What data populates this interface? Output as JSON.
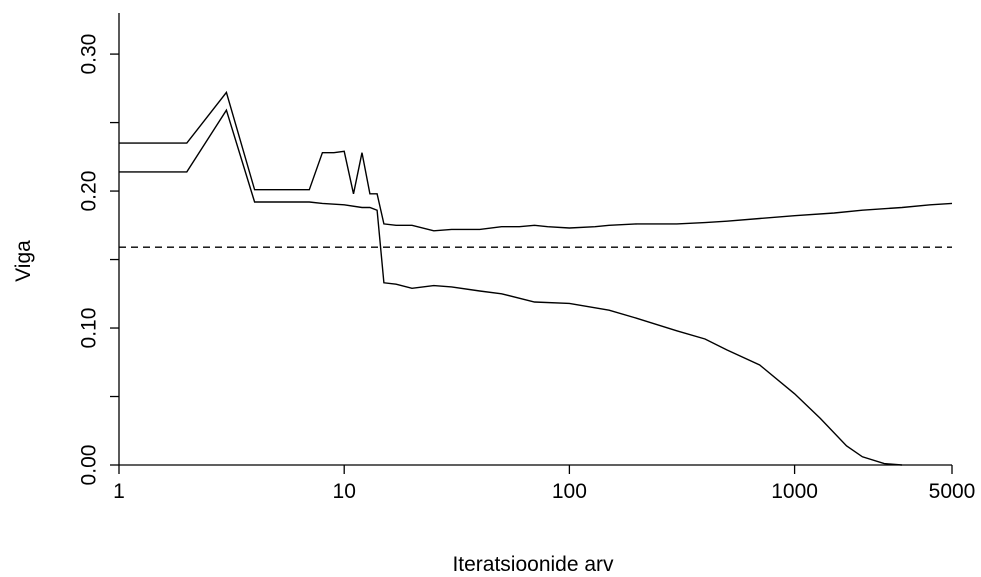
{
  "chart_data": {
    "type": "line",
    "title": "",
    "xlabel": "Iteratsioonide arv",
    "ylabel": "Viga",
    "x_scale": "log",
    "xlim": [
      1,
      5000
    ],
    "ylim": [
      0.0,
      0.33
    ],
    "x_ticks": [
      1,
      10,
      100,
      1000,
      5000
    ],
    "x_tick_labels": [
      "1",
      "10",
      "100",
      "1000",
      "5000"
    ],
    "y_ticks": [
      0.0,
      0.05,
      0.1,
      0.15,
      0.2,
      0.25,
      0.3
    ],
    "y_tick_labels": [
      "0.00",
      "",
      "0.10",
      "",
      "0.20",
      "",
      "0.30"
    ],
    "grid": false,
    "series": [
      {
        "style": "solid",
        "x": [
          1,
          2,
          3,
          4,
          5,
          7,
          8,
          9,
          10,
          11,
          12,
          13,
          14,
          15,
          17,
          20,
          25,
          30,
          40,
          50,
          60,
          70,
          80,
          100,
          130,
          150,
          200,
          300,
          400,
          500,
          700,
          1000,
          1500,
          2000,
          3000,
          4000,
          5000
        ],
        "y": [
          0.235,
          0.235,
          0.272,
          0.201,
          0.201,
          0.201,
          0.228,
          0.228,
          0.229,
          0.198,
          0.228,
          0.198,
          0.198,
          0.176,
          0.175,
          0.175,
          0.171,
          0.172,
          0.172,
          0.174,
          0.174,
          0.175,
          0.174,
          0.173,
          0.174,
          0.175,
          0.176,
          0.176,
          0.177,
          0.178,
          0.18,
          0.182,
          0.184,
          0.186,
          0.188,
          0.19,
          0.191
        ]
      },
      {
        "style": "solid",
        "x": [
          1,
          2,
          3,
          4,
          5,
          7,
          8,
          10,
          12,
          13,
          14,
          15,
          17,
          20,
          25,
          30,
          40,
          50,
          70,
          100,
          150,
          200,
          300,
          400,
          500,
          700,
          1000,
          1300,
          1700,
          2000,
          2500,
          3000
        ],
        "y": [
          0.214,
          0.214,
          0.259,
          0.192,
          0.192,
          0.192,
          0.191,
          0.19,
          0.188,
          0.188,
          0.186,
          0.133,
          0.132,
          0.129,
          0.131,
          0.13,
          0.127,
          0.125,
          0.119,
          0.118,
          0.113,
          0.107,
          0.098,
          0.092,
          0.084,
          0.073,
          0.052,
          0.034,
          0.014,
          0.006,
          0.001,
          0.0
        ]
      },
      {
        "style": "dashed",
        "x": [
          1,
          5000
        ],
        "y": [
          0.159,
          0.159
        ]
      }
    ]
  }
}
